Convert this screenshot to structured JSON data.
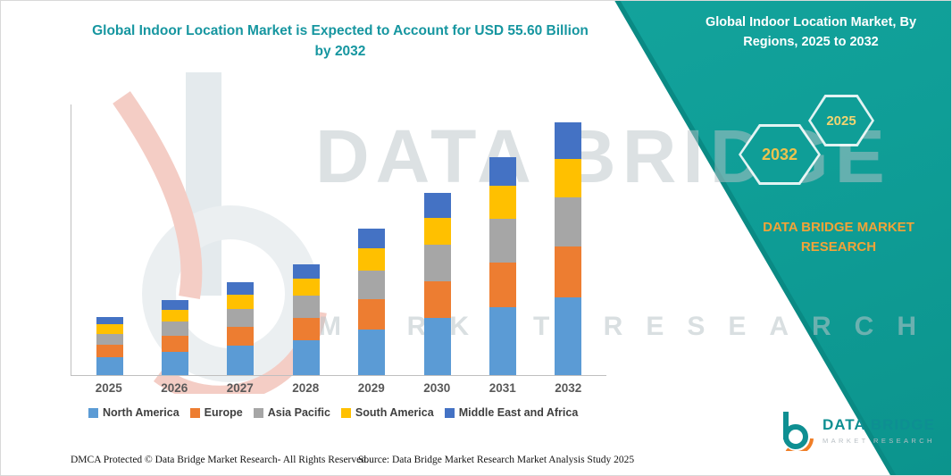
{
  "title": {
    "line1": "Global Indoor Location Market is Expected to Account for USD 55.60 Billion",
    "line2": "by 2032"
  },
  "banner": {
    "title_lines": [
      "Global Indoor Location Market, By",
      "Regions, 2025 to 2032"
    ],
    "badge_back": "2032",
    "badge_front": "2025",
    "brand_lines": [
      "DATA BRIDGE MARKET",
      "RESEARCH"
    ],
    "background_color": "#0f9e97",
    "badge_text_color": "#ecc24e",
    "brand_text_color": "#f2a338"
  },
  "watermark": {
    "line1": "DATA BRIDGE",
    "line2": "MARKET RESEARCH"
  },
  "chart_data": {
    "type": "bar",
    "stacked": true,
    "title": "Global Indoor Location Market is Expected to Account for USD 55.60 Billion by 2032",
    "categories": [
      "2025",
      "2026",
      "2027",
      "2028",
      "2029",
      "2030",
      "2031",
      "2032"
    ],
    "series": [
      {
        "name": "North America",
        "color": "#5B9BD5",
        "values": [
          4.0,
          5.2,
          6.4,
          7.6,
          10.0,
          12.5,
          15.0,
          17.0
        ]
      },
      {
        "name": "Europe",
        "color": "#ED7D31",
        "values": [
          2.6,
          3.4,
          4.2,
          5.0,
          6.6,
          8.2,
          9.8,
          11.2
        ]
      },
      {
        "name": "Asia Pacific",
        "color": "#A6A6A6",
        "values": [
          2.5,
          3.2,
          4.0,
          4.8,
          6.4,
          7.9,
          9.5,
          10.9
        ]
      },
      {
        "name": "South America",
        "color": "#FFC000",
        "values": [
          2.0,
          2.5,
          3.1,
          3.7,
          4.8,
          6.0,
          7.2,
          8.3
        ]
      },
      {
        "name": "Middle East and Africa",
        "color": "#4472C4",
        "values": [
          1.6,
          2.2,
          2.8,
          3.3,
          4.4,
          5.4,
          6.3,
          8.2
        ]
      }
    ],
    "totals": [
      12.7,
      16.5,
      20.5,
      24.4,
      32.2,
      40.0,
      47.8,
      55.6
    ],
    "unit": "USD Billion",
    "ylim": [
      0,
      60
    ],
    "legend_position": "bottom",
    "grid": false
  },
  "footer": {
    "dmca": "DMCA Protected © Data Bridge Market Research- All Rights Reserved.",
    "source": "Source: Data Bridge Market Research Market Analysis Study 2025"
  },
  "logo": {
    "name": "DATA BRIDGE",
    "tagline": "MARKET RESEARCH"
  }
}
